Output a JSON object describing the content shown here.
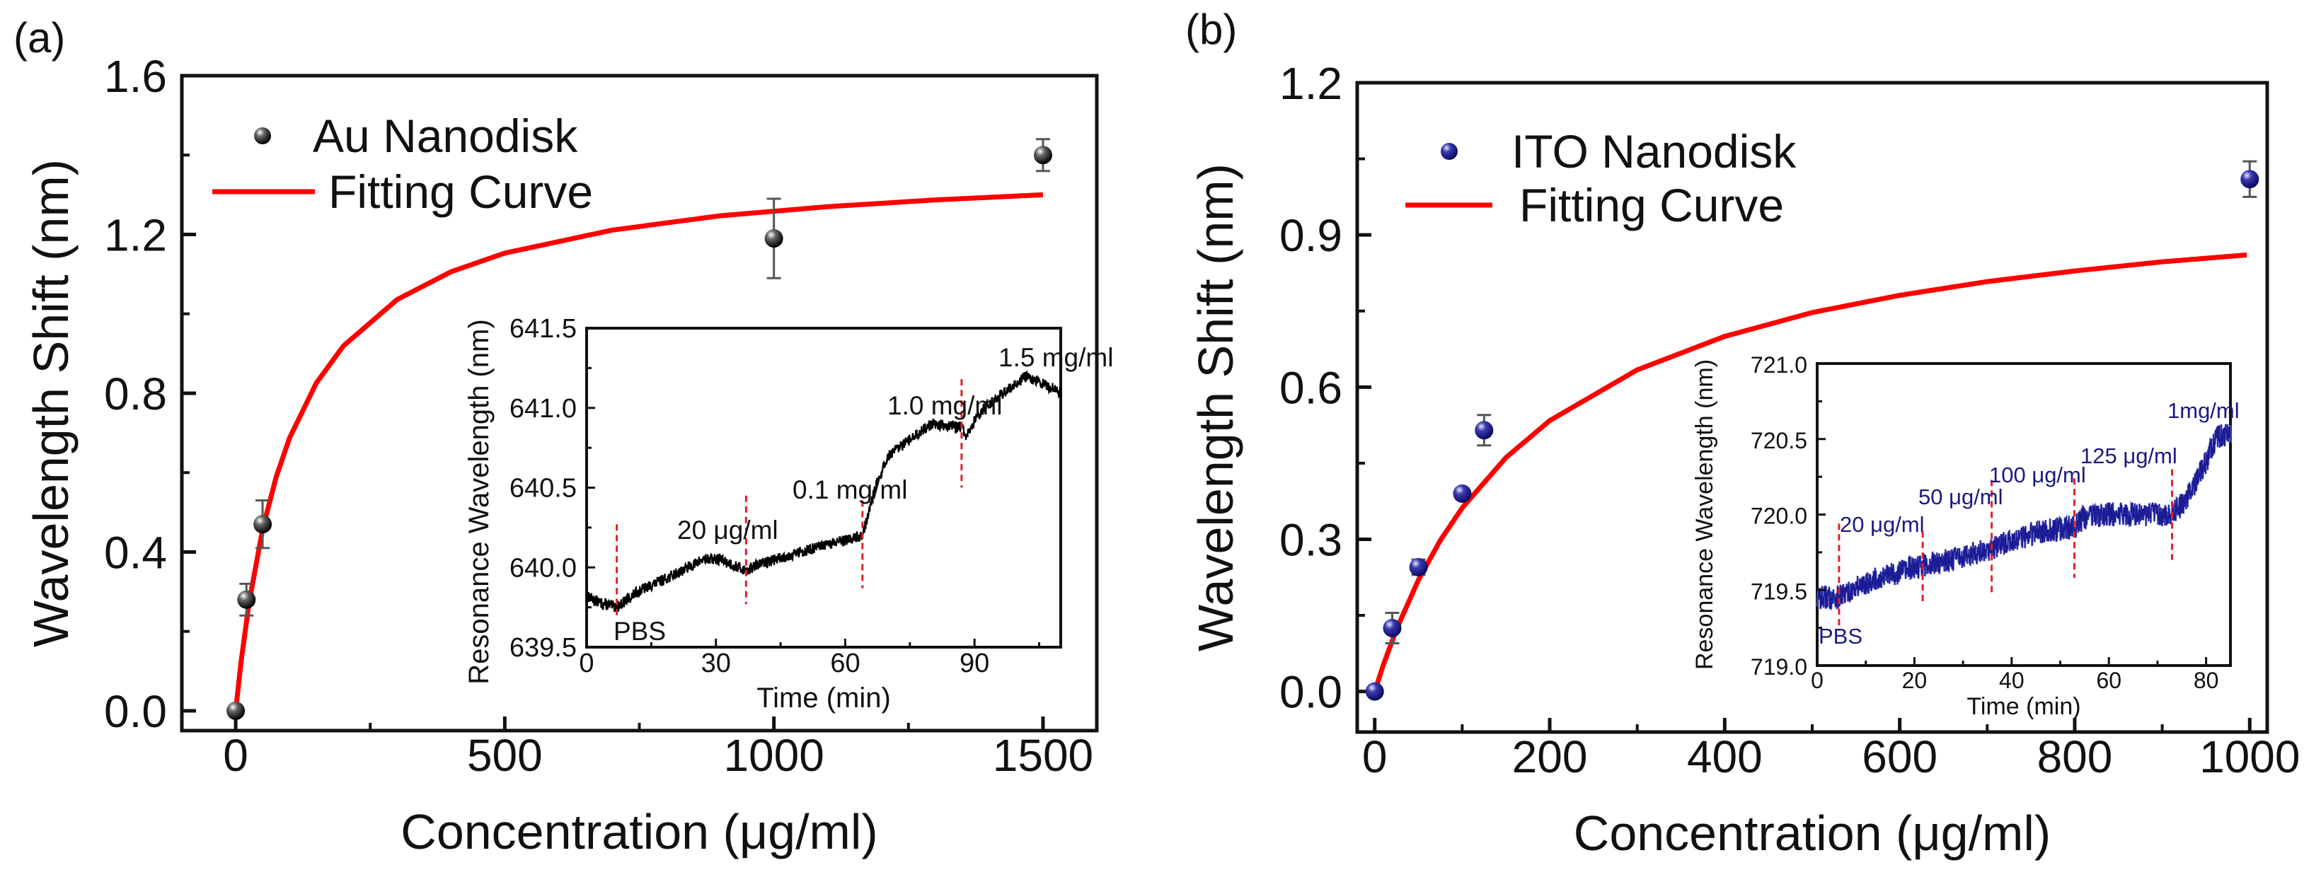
{
  "chart_data": [
    {
      "panel_label": "(a)",
      "type": "scatter",
      "xlabel": "Concentration (μg/ml)",
      "ylabel": "Wavelength Shift (nm)",
      "xlim": [
        -100,
        1600
      ],
      "ylim": [
        -0.05,
        1.6
      ],
      "xticks": [
        0,
        500,
        1000,
        1500
      ],
      "xtick_labels": [
        "0",
        "500",
        "1000",
        "1500"
      ],
      "yticks": [
        0,
        0.4,
        0.8,
        1.2,
        1.6
      ],
      "ytick_labels": [
        "0.0",
        "0.4",
        "0.8",
        "1.2",
        "1.6"
      ],
      "grid": false,
      "legend": {
        "placement": "top-left",
        "entries": [
          "Au Nanodisk",
          "Fitting Curve"
        ]
      },
      "series": [
        {
          "name": "Au Nanodisk",
          "type": "scatter",
          "color": "#111111",
          "x": [
            0,
            20,
            50,
            1000,
            1500
          ],
          "y": [
            0.0,
            0.28,
            0.47,
            1.19,
            1.4
          ],
          "yerr": [
            0.0,
            0.04,
            0.06,
            0.1,
            0.04
          ]
        },
        {
          "name": "Fitting Curve",
          "type": "line",
          "color": "#ff0000",
          "x": [
            0,
            10,
            25,
            50,
            75,
            100,
            150,
            200,
            300,
            400,
            500,
            700,
            900,
            1100,
            1300,
            1500
          ],
          "y": [
            0,
            0.124,
            0.273,
            0.457,
            0.588,
            0.687,
            0.826,
            0.919,
            1.036,
            1.106,
            1.153,
            1.211,
            1.247,
            1.27,
            1.287,
            1.3
          ]
        }
      ],
      "inset": {
        "type": "line",
        "xlabel": "Time (min)",
        "ylabel": "Resonance Wavelength (nm)",
        "xlim": [
          0,
          110
        ],
        "ylim": [
          639.5,
          641.5
        ],
        "xticks": [
          0,
          30,
          60,
          90
        ],
        "xtick_labels": [
          "0",
          "30",
          "60",
          "90"
        ],
        "yticks": [
          639.5,
          640.0,
          640.5,
          641.0,
          641.5
        ],
        "ytick_labels": [
          "639.5",
          "640.0",
          "640.5",
          "641.0",
          "641.5"
        ],
        "trace_color": "#000000",
        "marker_color": "#e0202a",
        "trace": {
          "t": [
            0,
            3,
            7,
            12,
            20,
            27,
            31,
            37,
            40,
            50,
            60,
            64,
            67,
            70,
            75,
            80,
            87,
            88,
            92,
            97,
            102,
            106,
            110
          ],
          "y": [
            639.82,
            639.78,
            639.75,
            639.85,
            639.95,
            640.05,
            640.05,
            639.98,
            640.02,
            640.1,
            640.17,
            640.2,
            640.5,
            640.7,
            640.8,
            640.9,
            640.88,
            640.82,
            641.0,
            641.1,
            641.2,
            641.15,
            641.1
          ]
        },
        "injection_markers": [
          {
            "t": 7,
            "y_from": 639.7,
            "y_to": 640.27
          },
          {
            "t": 37,
            "y_from": 639.77,
            "y_to": 640.45
          },
          {
            "t": 64,
            "y_from": 639.87,
            "y_to": 640.42
          },
          {
            "t": 87,
            "y_from": 640.5,
            "y_to": 641.18
          }
        ],
        "annotations": [
          "PBS",
          "20 μg/ml",
          "0.1 mg/ml",
          "1.0 mg/ml",
          "1.5 mg/ml"
        ]
      }
    },
    {
      "panel_label": "(b)",
      "type": "scatter",
      "xlabel": "Concentration (μg/ml)",
      "ylabel": "Wavelength Shift (nm)",
      "xlim": [
        -20,
        1020
      ],
      "ylim": [
        -0.08,
        1.2
      ],
      "xticks": [
        0,
        200,
        400,
        600,
        800,
        1000
      ],
      "xtick_labels": [
        "0",
        "200",
        "400",
        "600",
        "800",
        "1000"
      ],
      "yticks": [
        0,
        0.3,
        0.6,
        0.9,
        1.2
      ],
      "ytick_labels": [
        "0.0",
        "0.3",
        "0.6",
        "0.9",
        "1.2"
      ],
      "grid": false,
      "legend": {
        "placement": "top-left",
        "entries": [
          "ITO Nanodisk",
          "Fitting Curve"
        ]
      },
      "series": [
        {
          "name": "ITO Nanodisk",
          "type": "scatter",
          "color": "#1a1a8c",
          "x": [
            0,
            20,
            50,
            100,
            125,
            1000
          ],
          "y": [
            0.0,
            0.125,
            0.245,
            0.39,
            0.515,
            1.01
          ],
          "yerr": [
            0.0,
            0.03,
            0.015,
            0.01,
            0.03,
            0.035
          ]
        },
        {
          "name": "Fitting Curve",
          "type": "line",
          "color": "#ff0000",
          "x": [
            0,
            10,
            25,
            50,
            75,
            100,
            150,
            200,
            300,
            400,
            500,
            600,
            700,
            800,
            900,
            1000
          ],
          "y": [
            0,
            0.053,
            0.123,
            0.22,
            0.298,
            0.362,
            0.461,
            0.534,
            0.634,
            0.7,
            0.747,
            0.781,
            0.808,
            0.829,
            0.847,
            0.861
          ]
        }
      ],
      "inset": {
        "type": "line",
        "xlabel": "Time (min)",
        "ylabel": "Resonance Wavelength (nm)",
        "xlim": [
          0,
          85
        ],
        "ylim": [
          719.0,
          721.0
        ],
        "xticks": [
          0,
          20,
          40,
          60,
          80
        ],
        "xtick_labels": [
          "0",
          "20",
          "40",
          "60",
          "80"
        ],
        "yticks": [
          719.0,
          719.5,
          720.0,
          720.5,
          721.0
        ],
        "ytick_labels": [
          "719.0",
          "719.5",
          "720.0",
          "720.5",
          "721.0"
        ],
        "trace_color": "#1c1c96",
        "marker_color": "#e0202a",
        "trace": {
          "t": [
            0,
            4.5,
            10,
            20,
            30,
            36,
            45,
            53,
            55,
            60,
            70,
            73,
            76,
            80,
            82,
            85
          ],
          "y": [
            719.45,
            719.45,
            719.55,
            719.65,
            719.72,
            719.78,
            719.88,
            719.92,
            719.98,
            720.0,
            720.0,
            720.0,
            720.1,
            720.35,
            720.5,
            720.55
          ]
        },
        "injection_markers": [
          {
            "t": 4.5,
            "y_from": 719.23,
            "y_to": 719.94
          },
          {
            "t": 21.7,
            "y_from": 719.4,
            "y_to": 719.89
          },
          {
            "t": 35.9,
            "y_from": 719.46,
            "y_to": 720.23
          },
          {
            "t": 52.9,
            "y_from": 719.58,
            "y_to": 720.24
          },
          {
            "t": 73,
            "y_from": 719.7,
            "y_to": 720.3
          }
        ],
        "annotations": [
          "PBS",
          "20 μg/ml",
          "50 μg/ml",
          "100 μg/ml",
          "125 μg/ml",
          "1mg/ml"
        ]
      }
    }
  ]
}
